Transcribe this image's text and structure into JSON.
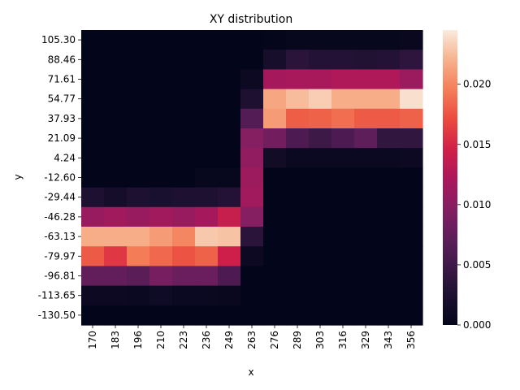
{
  "chart_data": {
    "type": "heatmap",
    "title": "XY distribution",
    "xlabel": "x",
    "ylabel": "y",
    "x_ticks": [
      "170",
      "183",
      "196",
      "210",
      "223",
      "236",
      "249",
      "263",
      "276",
      "289",
      "303",
      "316",
      "329",
      "343",
      "356"
    ],
    "y_ticks": [
      "105.30",
      "88.46",
      "71.61",
      "54.77",
      "37.93",
      "21.09",
      "4.24",
      "-12.60",
      "-29.44",
      "-46.28",
      "-63.13",
      "-79.97",
      "-96.81",
      "-113.65",
      "-130.50"
    ],
    "colorbar": {
      "min": 0.0,
      "max": 0.0245,
      "ticks": [
        "0.000",
        "0.005",
        "0.010",
        "0.015",
        "0.020"
      ],
      "tick_values": [
        0.0,
        0.005,
        0.01,
        0.015,
        0.02
      ]
    },
    "values": [
      [
        0.0,
        0.0,
        0.0,
        0.0,
        0.0,
        0.0,
        0.0,
        0.0,
        0.0002,
        0.0004,
        0.0004,
        0.0004,
        0.0004,
        0.0004,
        0.0006
      ],
      [
        0.0,
        0.0,
        0.0,
        0.0,
        0.0,
        0.0,
        0.0,
        0.0,
        0.002,
        0.0035,
        0.003,
        0.003,
        0.0028,
        0.003,
        0.0038
      ],
      [
        0.0,
        0.0,
        0.0,
        0.0,
        0.0,
        0.0,
        0.0,
        0.001,
        0.0118,
        0.012,
        0.012,
        0.0125,
        0.0125,
        0.0125,
        0.0112
      ],
      [
        0.0,
        0.0,
        0.0,
        0.0,
        0.0,
        0.0,
        0.0,
        0.0025,
        0.0215,
        0.0225,
        0.0232,
        0.0218,
        0.0218,
        0.0218,
        0.024
      ],
      [
        0.0,
        0.0,
        0.0,
        0.0,
        0.0,
        0.0,
        0.0,
        0.0065,
        0.021,
        0.018,
        0.0182,
        0.0188,
        0.0178,
        0.0178,
        0.0182
      ],
      [
        0.0,
        0.0,
        0.0,
        0.0,
        0.0,
        0.0,
        0.0,
        0.0098,
        0.0085,
        0.006,
        0.0048,
        0.006,
        0.0072,
        0.004,
        0.004
      ],
      [
        0.0,
        0.0,
        0.0,
        0.0,
        0.0,
        0.0,
        0.0,
        0.0105,
        0.0015,
        0.0008,
        0.0008,
        0.0008,
        0.0008,
        0.0008,
        0.001
      ],
      [
        0.0,
        0.0,
        0.0,
        0.0,
        0.0,
        0.0004,
        0.0004,
        0.0112,
        0.0,
        0.0,
        0.0,
        0.0,
        0.0,
        0.0,
        0.0
      ],
      [
        0.0025,
        0.0018,
        0.0025,
        0.0022,
        0.0025,
        0.0025,
        0.003,
        0.0115,
        0.0,
        0.0,
        0.0,
        0.0,
        0.0,
        0.0,
        0.0
      ],
      [
        0.011,
        0.0115,
        0.011,
        0.0115,
        0.011,
        0.0118,
        0.014,
        0.0098,
        0.0,
        0.0,
        0.0,
        0.0,
        0.0,
        0.0,
        0.0
      ],
      [
        0.0218,
        0.0218,
        0.0218,
        0.021,
        0.02,
        0.023,
        0.0228,
        0.0035,
        0.0,
        0.0,
        0.0,
        0.0,
        0.0,
        0.0,
        0.0
      ],
      [
        0.0178,
        0.016,
        0.0195,
        0.0185,
        0.0175,
        0.0182,
        0.0145,
        0.001,
        0.0,
        0.0,
        0.0,
        0.0,
        0.0,
        0.0,
        0.0
      ],
      [
        0.0075,
        0.0075,
        0.007,
        0.0088,
        0.008,
        0.008,
        0.006,
        0.0,
        0.0,
        0.0,
        0.0,
        0.0,
        0.0,
        0.0,
        0.0
      ],
      [
        0.001,
        0.001,
        0.0008,
        0.0012,
        0.0008,
        0.0008,
        0.0006,
        0.0,
        0.0,
        0.0,
        0.0,
        0.0,
        0.0,
        0.0,
        0.0
      ],
      [
        0.0,
        0.0,
        0.0,
        0.0,
        0.0,
        0.0,
        0.0,
        0.0,
        0.0,
        0.0,
        0.0,
        0.0,
        0.0,
        0.0,
        0.0
      ]
    ],
    "colormap": "rocket",
    "grid": false,
    "legend": "colorbar-right"
  }
}
